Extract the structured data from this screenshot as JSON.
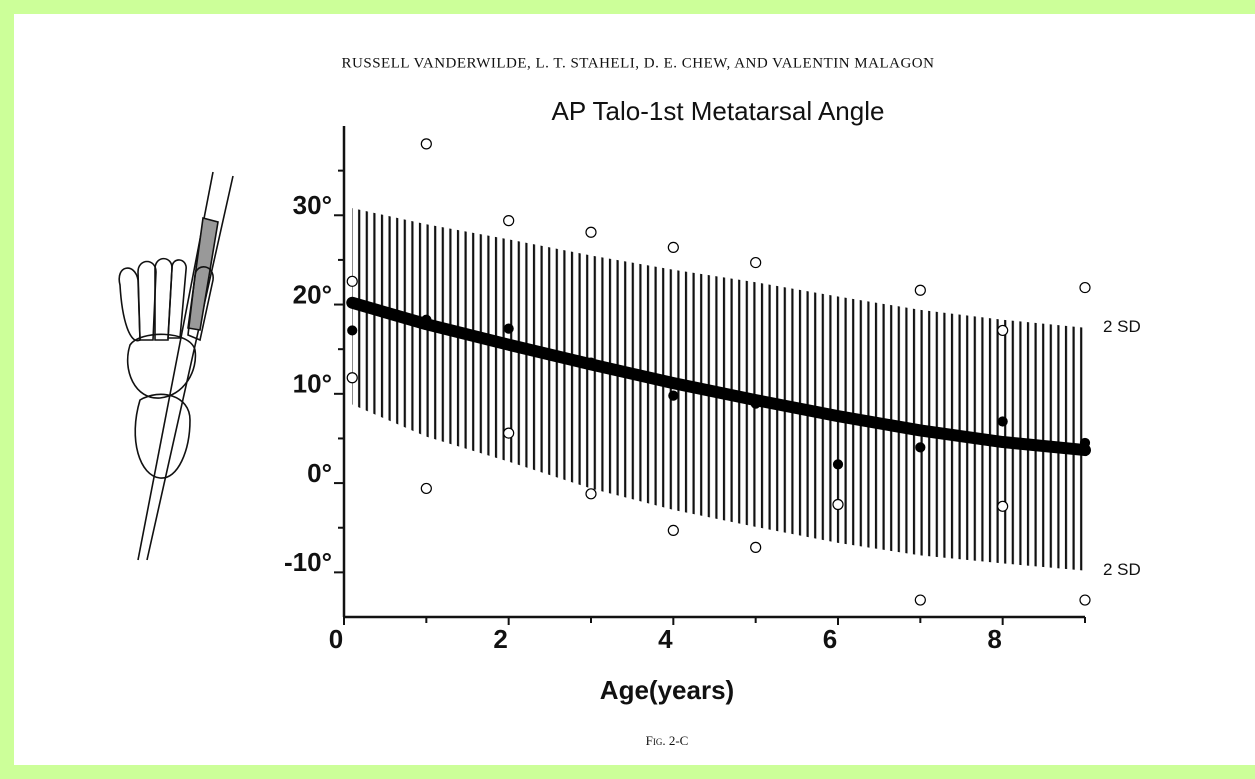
{
  "chart_data": {
    "type": "scatter",
    "header": "RUSSELL VANDERWILDE, L. T. STAHELI, D. E. CHEW, AND VALENTIN MALAGON",
    "title": "AP Talo-1st Metatarsal Angle",
    "x_label": "Age(years)",
    "caption": "Fig. 2-C",
    "xlim": [
      0,
      9
    ],
    "ylim": [
      -15,
      40
    ],
    "xticks": [
      0,
      2,
      4,
      6,
      8
    ],
    "xminor_ticks": [
      1,
      3,
      5,
      7,
      9
    ],
    "yticks": [
      {
        "value": -10,
        "label": "-10°"
      },
      {
        "value": 0,
        "label": "0°"
      },
      {
        "value": 10,
        "label": "10°"
      },
      {
        "value": 20,
        "label": "20°"
      },
      {
        "value": 30,
        "label": "30°"
      }
    ],
    "yminor_ticks": [
      -5,
      5,
      15,
      25,
      35
    ],
    "band": {
      "color": "#000000",
      "x": [
        0.1,
        1,
        2,
        3,
        4,
        5,
        6,
        7,
        8,
        9
      ],
      "upper": [
        30.8,
        29,
        27.3,
        25.5,
        23.9,
        22.5,
        20.9,
        19.4,
        18.3,
        17.4
      ],
      "lower": [
        8.8,
        5.2,
        2.4,
        -0.6,
        -3,
        -4.9,
        -6.7,
        -8.1,
        -9,
        -9.8
      ]
    },
    "curve": {
      "color": "#000000",
      "x": [
        0.1,
        1,
        2,
        3,
        4,
        5,
        6,
        7,
        8,
        9
      ],
      "values": [
        20.2,
        17.8,
        15.5,
        13.3,
        11.2,
        9.3,
        7.5,
        5.9,
        4.6,
        3.7
      ]
    },
    "annotations": [
      "2 SD",
      "2 SD"
    ],
    "series": [
      {
        "color": "#000000",
        "marker": "filled",
        "x": [
          0.1,
          1,
          2,
          3,
          4,
          5,
          6,
          7,
          8,
          9
        ],
        "values": [
          17.1,
          18.3,
          17.3,
          13.5,
          9.8,
          8.9,
          2.1,
          4.0,
          6.9,
          4.5
        ]
      },
      {
        "color": "#000000",
        "marker": "open",
        "x": [
          0.1,
          0.1,
          1,
          1,
          2,
          2,
          3,
          3,
          4,
          4,
          5,
          5,
          6,
          7,
          7,
          8,
          8,
          9,
          9
        ],
        "values": [
          22.6,
          11.8,
          38,
          -0.6,
          29.4,
          5.6,
          28.1,
          -1.2,
          26.4,
          -5.3,
          24.7,
          -7.2,
          -2.4,
          21.6,
          -13.1,
          17.1,
          -2.6,
          21.9,
          -13.1
        ]
      }
    ]
  }
}
